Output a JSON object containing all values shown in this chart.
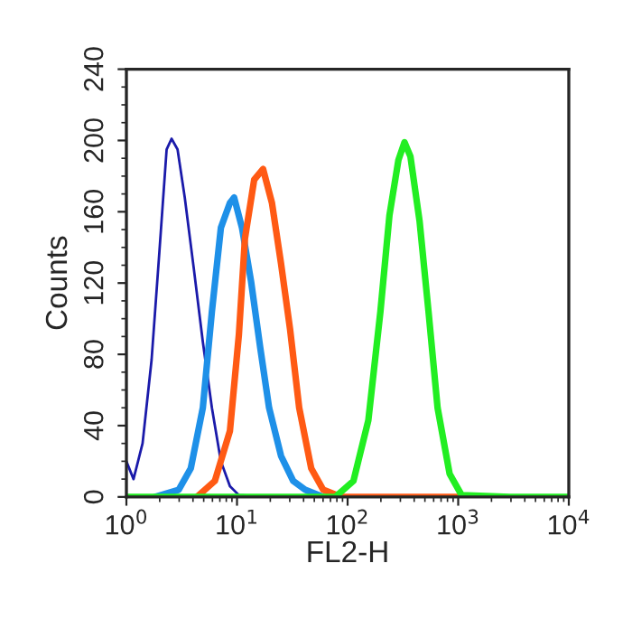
{
  "chart_data": {
    "type": "line",
    "xlabel": "FL2-H",
    "ylabel": "Counts",
    "log": "x",
    "grid": false,
    "legend": false,
    "marker": "none",
    "line_style": "solid",
    "xlim": [
      1,
      10000
    ],
    "xticks": [
      {
        "value": 1,
        "label": "10$^{0}$"
      },
      {
        "value": 10,
        "label": "10$^{1}$"
      },
      {
        "value": 100,
        "label": "10$^{2}$"
      },
      {
        "value": 1000,
        "label": "10$^{3}$"
      },
      {
        "value": 10000,
        "label": "10$^{4}$"
      }
    ],
    "ylim": [
      0,
      240
    ],
    "yticks": [
      0,
      40,
      80,
      120,
      160,
      200,
      240
    ],
    "series": [
      {
        "color": "#1a1aaa",
        "x": [
          1.0,
          1.16,
          1.4,
          1.69,
          1.99,
          2.31,
          2.56,
          2.9,
          3.37,
          4.07,
          4.91,
          5.93,
          7.15,
          8.63,
          10.4,
          19.5,
          47
        ],
        "values": [
          20,
          10,
          30,
          77,
          138,
          195,
          201,
          195,
          168,
          128,
          87,
          50,
          20,
          6,
          1,
          0,
          0
        ]
      },
      {
        "color": "#1e90e8",
        "x": [
          1.8,
          2.97,
          3.82,
          4.91,
          5.93,
          7.15,
          8.63,
          9.42,
          11.1,
          13.4,
          16.2,
          19.5,
          25.0,
          32.2,
          41.3,
          60.2
        ],
        "values": [
          0,
          4,
          16,
          50,
          104,
          151,
          165,
          168,
          151,
          121,
          84,
          50,
          23,
          9,
          4,
          0
        ]
      },
      {
        "color": "#ff5a14",
        "x": [
          4.33,
          6.31,
          8.63,
          10.4,
          11.8,
          14.3,
          17.2,
          20.7,
          25.0,
          30.2,
          36.5,
          46.9,
          60.2,
          87.7,
          1550
        ],
        "values": [
          0,
          9,
          37,
          91,
          145,
          178,
          184,
          165,
          131,
          94,
          50,
          16,
          4,
          0,
          0
        ]
      },
      {
        "color": "#22ee22",
        "x": [
          1.0,
          77.3,
          113,
          154,
          198,
          239,
          288,
          327,
          370,
          447,
          539,
          651,
          836,
          1074,
          2930,
          10000
        ],
        "values": [
          0,
          0,
          9,
          43,
          104,
          158,
          189,
          199,
          191,
          155,
          104,
          50,
          13,
          1,
          0,
          0
        ]
      }
    ]
  }
}
